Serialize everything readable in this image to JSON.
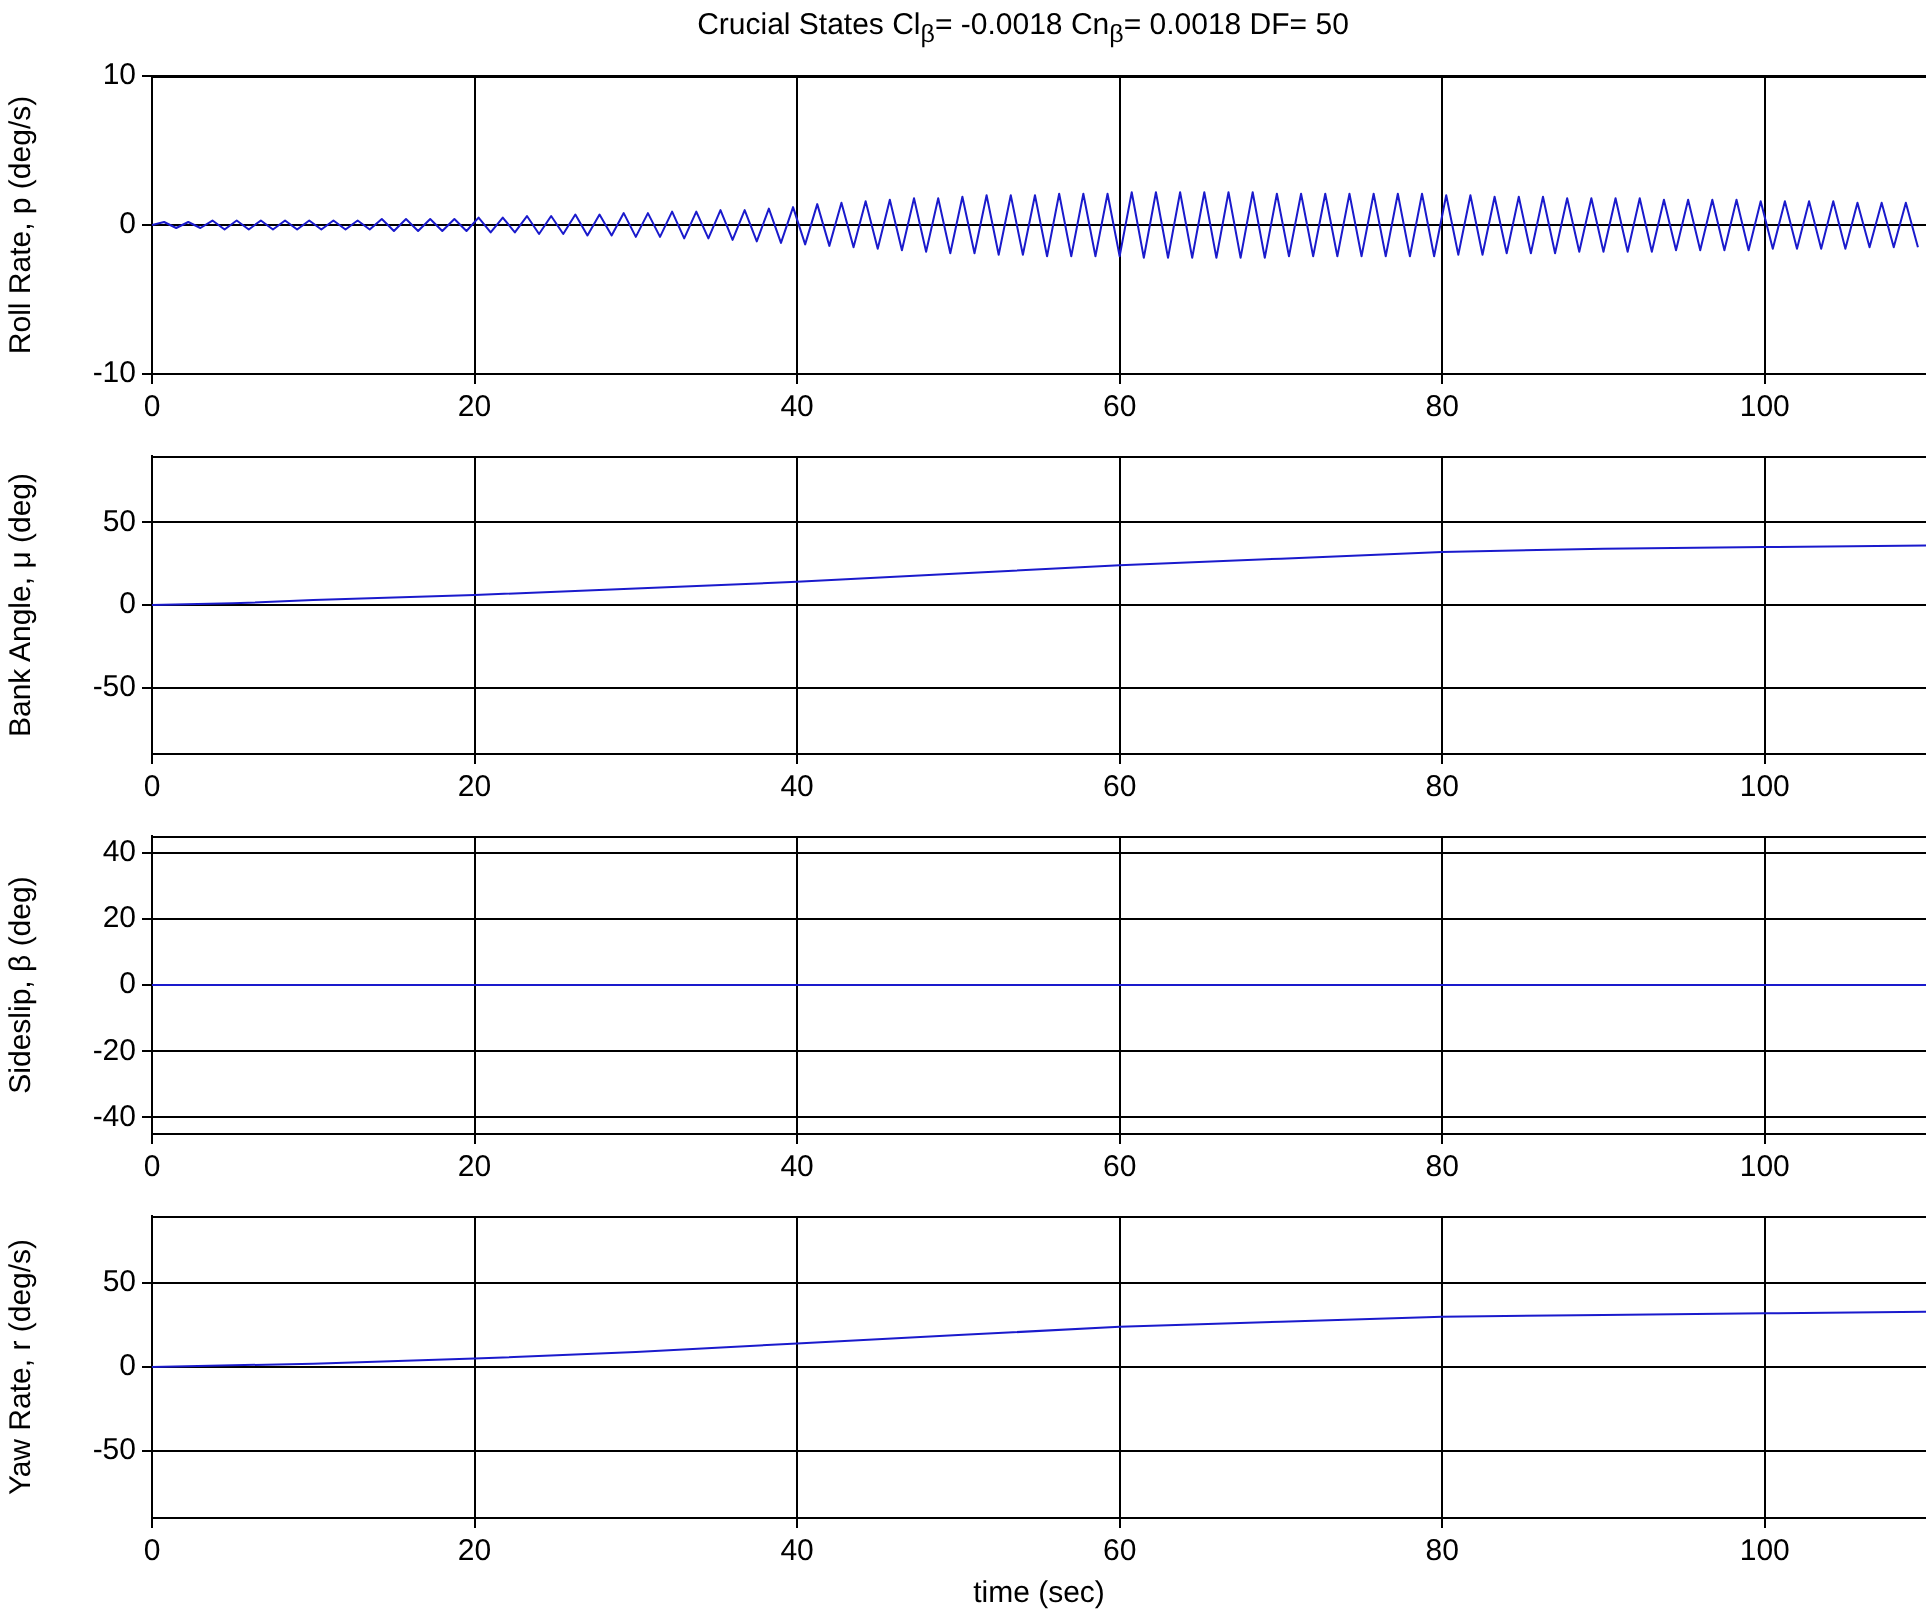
{
  "chart_data": [
    {
      "type": "line",
      "title": "Crucial States  Cl$_{β}$= -0.0018  Cn$_{β}$= 0.0018  DF= 50",
      "ylabel": "Roll Rate, p (deg/s)",
      "xlim": [
        0,
        110
      ],
      "xticks": [
        0,
        20,
        40,
        60,
        80,
        100
      ],
      "ylim": [
        -10,
        10
      ],
      "yticks": [
        -10,
        0,
        10
      ],
      "grid": true,
      "x": [
        0,
        0.75,
        1.5,
        2.25,
        3,
        3.75,
        4.5,
        5.25,
        6,
        6.75,
        7.5,
        8.25,
        9,
        9.75,
        10.5,
        11.25,
        12,
        12.75,
        13.5,
        14.25,
        15,
        15.75,
        16.5,
        17.25,
        18,
        18.75,
        19.5,
        20.25,
        21,
        21.75,
        22.5,
        23.25,
        24,
        24.75,
        25.5,
        26.25,
        27,
        27.75,
        28.5,
        29.25,
        30,
        30.75,
        31.5,
        32.25,
        33,
        33.75,
        34.5,
        35.25,
        36,
        36.75,
        37.5,
        38.25,
        39,
        39.75,
        40.5,
        41.25,
        42,
        42.75,
        43.5,
        44.25,
        45,
        45.75,
        46.5,
        47.25,
        48,
        48.75,
        49.5,
        50.25,
        51,
        51.75,
        52.5,
        53.25,
        54,
        54.75,
        55.5,
        56.25,
        57,
        57.75,
        58.5,
        59.25,
        60,
        60.75,
        61.5,
        62.25,
        63,
        63.75,
        64.5,
        65.25,
        66,
        66.75,
        67.5,
        68.25,
        69,
        69.75,
        70.5,
        71.25,
        72,
        72.75,
        73.5,
        74.25,
        75,
        75.75,
        76.5,
        77.25,
        78,
        78.75,
        79.5,
        80.25,
        81,
        81.75,
        82.5,
        83.25,
        84,
        84.75,
        85.5,
        86.25,
        87,
        87.75,
        88.5,
        89.25,
        90,
        90.75,
        91.5,
        92.25,
        93,
        93.75,
        94.5,
        95.25,
        96,
        96.75,
        97.5,
        98.25,
        99,
        99.75,
        100.5,
        101.25,
        102,
        102.75,
        103.5,
        104.25,
        105,
        105.75,
        106.5,
        107.25,
        108,
        108.75,
        109.5
      ],
      "series": [
        {
          "color": "#1a1acc",
          "values": [
            0,
            0.2,
            -0.2,
            0.2,
            -0.2,
            0.3,
            -0.3,
            0.3,
            -0.3,
            0.3,
            -0.3,
            0.3,
            -0.3,
            0.3,
            -0.3,
            0.3,
            -0.3,
            0.3,
            -0.3,
            0.4,
            -0.4,
            0.4,
            -0.4,
            0.4,
            -0.4,
            0.4,
            -0.4,
            0.5,
            -0.5,
            0.5,
            -0.5,
            0.6,
            -0.6,
            0.6,
            -0.6,
            0.7,
            -0.7,
            0.7,
            -0.7,
            0.8,
            -0.8,
            0.8,
            -0.8,
            0.9,
            -0.9,
            0.9,
            -0.9,
            1,
            -1,
            1,
            -1.1,
            1.1,
            -1.2,
            1.2,
            -1.3,
            1.4,
            -1.4,
            1.5,
            -1.5,
            1.6,
            -1.6,
            1.7,
            -1.7,
            1.8,
            -1.8,
            1.8,
            -1.9,
            1.9,
            -1.9,
            2,
            -2,
            2,
            -2,
            2,
            -2.1,
            2.1,
            -2.1,
            2.1,
            -2.1,
            2.1,
            -2.1,
            2.2,
            -2.2,
            2.2,
            -2.2,
            2.2,
            -2.2,
            2.2,
            -2.2,
            2.2,
            -2.2,
            2.2,
            -2.2,
            2.1,
            -2.1,
            2.1,
            -2.1,
            2.1,
            -2.1,
            2.1,
            -2.1,
            2.1,
            -2.1,
            2.1,
            -2.1,
            2.1,
            -2.1,
            2,
            -2,
            2,
            -2,
            1.9,
            -1.9,
            1.9,
            -1.9,
            1.9,
            -1.9,
            1.8,
            -1.8,
            1.8,
            -1.8,
            1.8,
            -1.8,
            1.8,
            -1.8,
            1.7,
            -1.7,
            1.7,
            -1.7,
            1.7,
            -1.7,
            1.7,
            -1.7,
            1.6,
            -1.6,
            1.6,
            -1.6,
            1.6,
            -1.6,
            1.6,
            -1.6,
            1.5,
            -1.5,
            1.5,
            -1.5,
            1.5,
            -1.5
          ]
        }
      ]
    },
    {
      "type": "line",
      "ylabel": "Bank Angle, μ (deg)",
      "xlim": [
        0,
        110
      ],
      "xticks": [
        0,
        20,
        40,
        60,
        80,
        100
      ],
      "ylim": [
        -90,
        90
      ],
      "yticks": [
        -50,
        0,
        50
      ],
      "grid": true,
      "x": [
        0,
        5,
        10,
        20,
        30,
        40,
        50,
        60,
        70,
        80,
        90,
        100,
        110
      ],
      "series": [
        {
          "color": "#1a1acc",
          "values": [
            0,
            1,
            3,
            6,
            10,
            14,
            19,
            24,
            28,
            32,
            34,
            35,
            36
          ]
        }
      ]
    },
    {
      "type": "line",
      "ylabel": "Sideslip, β (deg)",
      "xlim": [
        0,
        110
      ],
      "xticks": [
        0,
        20,
        40,
        60,
        80,
        100
      ],
      "ylim": [
        -45,
        45
      ],
      "yticks": [
        -40,
        -20,
        0,
        20,
        40
      ],
      "grid": true,
      "x": [
        0,
        20,
        40,
        60,
        80,
        100,
        110
      ],
      "series": [
        {
          "color": "#1a1acc",
          "values": [
            0,
            0,
            0,
            0,
            0,
            0,
            0
          ]
        }
      ]
    },
    {
      "type": "line",
      "ylabel": "Yaw Rate, r (deg/s)",
      "xlabel": "time (sec)",
      "xlim": [
        0,
        110
      ],
      "xticks": [
        0,
        20,
        40,
        60,
        80,
        100
      ],
      "ylim": [
        -90,
        90
      ],
      "yticks": [
        -50,
        0,
        50
      ],
      "grid": true,
      "x": [
        0,
        5,
        10,
        20,
        30,
        40,
        50,
        60,
        70,
        80,
        90,
        100,
        110
      ],
      "series": [
        {
          "color": "#1a1acc",
          "values": [
            0,
            1,
            2,
            5,
            9,
            14,
            19,
            24,
            27,
            30,
            31,
            32,
            33
          ]
        }
      ]
    }
  ]
}
